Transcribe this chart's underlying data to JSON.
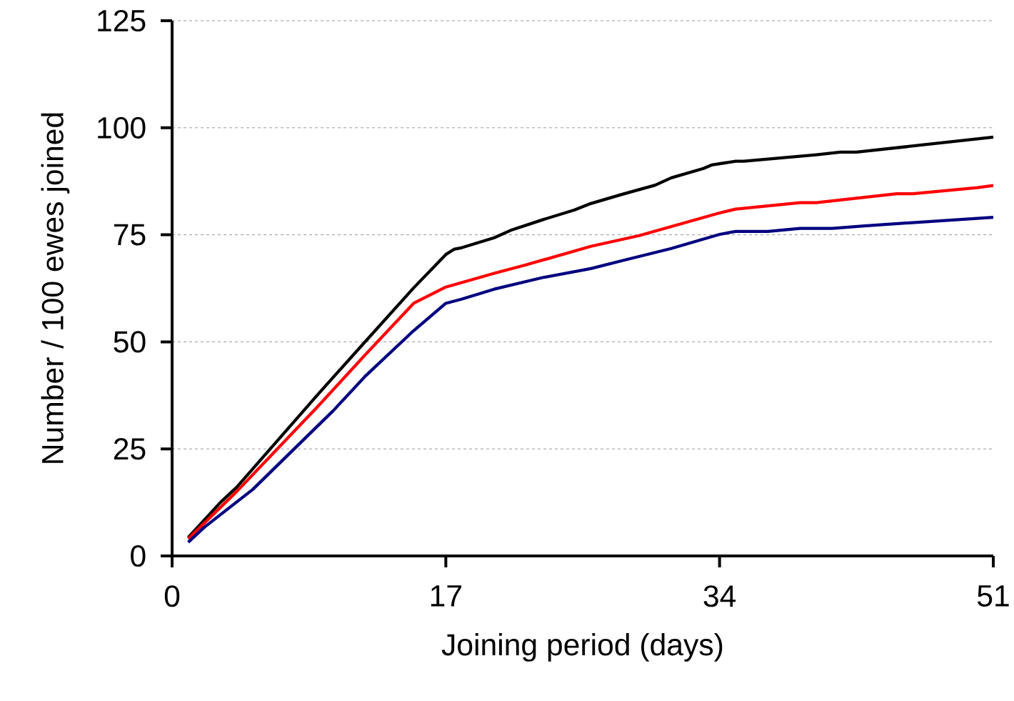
{
  "chart_data": {
    "type": "line",
    "xlabel": "Joining period (days)",
    "ylabel": "Number / 100 ewes joined",
    "xlim": [
      0,
      51
    ],
    "xticks": [
      0,
      17,
      34,
      51
    ],
    "ylim": [
      0,
      125
    ],
    "yticks": [
      0,
      25,
      50,
      75,
      100,
      125
    ],
    "grid": "y",
    "line_style": "solid",
    "marker": "none",
    "series": [
      {
        "color": "#000000",
        "x": [
          1,
          3,
          4,
          9,
          10,
          15,
          17,
          17.5,
          18,
          20,
          21,
          23,
          25,
          26,
          28,
          30,
          31,
          33,
          33.5,
          35,
          35.5,
          40,
          41.5,
          42.5,
          51
        ],
        "values": [
          4.3,
          12.5,
          16,
          37.5,
          41.7,
          62.6,
          70.4,
          71.6,
          72,
          74.3,
          76,
          78.5,
          80.8,
          82.3,
          84.5,
          86.6,
          88.3,
          90.5,
          91.3,
          92.2,
          92.2,
          93.7,
          94.3,
          94.3,
          97.8
        ]
      },
      {
        "color": "#ff0000",
        "x": [
          1,
          4,
          9,
          12,
          15,
          17,
          20,
          22,
          26,
          29,
          34,
          35,
          39,
          40,
          45,
          46,
          50,
          51
        ],
        "values": [
          4,
          15,
          34.7,
          47,
          59,
          62.8,
          66,
          68,
          72.3,
          74.8,
          80.1,
          81,
          82.5,
          82.5,
          84.6,
          84.6,
          86,
          86.5
        ]
      },
      {
        "color": "#000080",
        "x": [
          1,
          2,
          5,
          10,
          12,
          15,
          17,
          18,
          20,
          23,
          26,
          28,
          31,
          34,
          35,
          37,
          39,
          41,
          43,
          47,
          51
        ],
        "values": [
          3.2,
          6.7,
          15.5,
          33.9,
          42,
          52.6,
          59,
          60,
          62.3,
          65,
          67.1,
          69,
          71.8,
          75.1,
          75.8,
          75.8,
          76.5,
          76.5,
          77.1,
          78.1,
          79.1
        ]
      }
    ]
  }
}
